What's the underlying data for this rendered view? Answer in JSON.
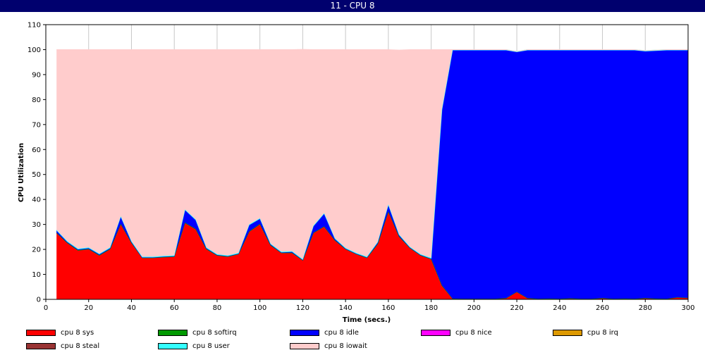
{
  "window": {
    "title": "11 - CPU 8"
  },
  "chart_data": {
    "type": "area",
    "stacked": true,
    "title": "",
    "xlabel": "Time (secs.)",
    "ylabel": "CPU Utilization",
    "xlim": [
      0,
      300
    ],
    "ylim": [
      0,
      110
    ],
    "xticks": [
      0,
      20,
      40,
      60,
      80,
      100,
      120,
      140,
      160,
      180,
      200,
      220,
      240,
      260,
      280,
      300
    ],
    "yticks": [
      0,
      10,
      20,
      30,
      40,
      50,
      60,
      70,
      80,
      90,
      100,
      110
    ],
    "grid": "vertical",
    "legend_position": "bottom",
    "x": [
      5,
      10,
      15,
      20,
      25,
      30,
      35,
      40,
      45,
      50,
      55,
      60,
      65,
      70,
      75,
      80,
      85,
      90,
      95,
      100,
      105,
      110,
      115,
      120,
      125,
      130,
      135,
      140,
      145,
      150,
      155,
      160,
      165,
      170,
      175,
      180,
      185,
      190,
      195,
      200,
      205,
      210,
      215,
      220,
      225,
      230,
      235,
      240,
      245,
      250,
      255,
      260,
      265,
      270,
      275,
      280,
      285,
      290,
      295,
      300
    ],
    "series": [
      {
        "name": "cpu 8 sys",
        "color": "#ff0000",
        "values": [
          26.5,
          22.5,
          19.5,
          20.0,
          17.5,
          20.0,
          30.0,
          22.5,
          16.5,
          16.5,
          16.8,
          17.0,
          30.5,
          28.0,
          20.0,
          17.5,
          17.0,
          18.0,
          27.0,
          30.0,
          21.5,
          18.5,
          18.5,
          15.5,
          26.5,
          29.0,
          23.5,
          20.0,
          18.0,
          16.5,
          22.0,
          35.0,
          25.0,
          20.5,
          17.5,
          16.0,
          5.5,
          0.3,
          0.2,
          0.2,
          0.2,
          0.2,
          0.5,
          3.0,
          0.5,
          0.2,
          0.3,
          0.2,
          0.4,
          0.2,
          0.2,
          0.5,
          0.2,
          0.3,
          0.2,
          0.5,
          0.3,
          0.2,
          0.8,
          0.6
        ]
      },
      {
        "name": "cpu 8 softirq",
        "color": "#009900",
        "values": [
          0.2,
          0.2,
          0.2,
          0.2,
          0.2,
          0.2,
          0.2,
          0.2,
          0.2,
          0.2,
          0.2,
          0.2,
          0.2,
          0.2,
          0.2,
          0.2,
          0.2,
          0.2,
          0.2,
          0.2,
          0.2,
          0.2,
          0.2,
          0.2,
          0.2,
          0.2,
          0.2,
          0.2,
          0.2,
          0.2,
          0.2,
          0.2,
          0.2,
          0.2,
          0.2,
          0.2,
          0.1,
          0.0,
          0.0,
          0.0,
          0.0,
          0.0,
          0.0,
          0.0,
          0.0,
          0.0,
          0.0,
          0.0,
          0.0,
          0.0,
          0.0,
          0.0,
          0.0,
          0.0,
          0.0,
          0.0,
          0.0,
          0.0,
          0.0,
          0.0
        ]
      },
      {
        "name": "cpu 8 idle",
        "color": "#0000ff",
        "values": [
          0.8,
          0.3,
          0.3,
          0.3,
          0.3,
          0.3,
          2.8,
          0.3,
          0.1,
          0.1,
          0.1,
          0.1,
          5.0,
          3.5,
          0.3,
          0.1,
          0.1,
          0.1,
          2.5,
          2.0,
          0.3,
          0.1,
          0.3,
          0.1,
          2.5,
          5.0,
          0.5,
          0.1,
          0.1,
          0.1,
          0.5,
          2.5,
          0.5,
          0.1,
          0.1,
          0.1,
          70.0,
          99.4,
          99.5,
          99.5,
          99.5,
          99.5,
          99.2,
          96.0,
          99.2,
          99.5,
          99.4,
          99.5,
          99.3,
          99.5,
          99.5,
          99.2,
          99.5,
          99.4,
          99.5,
          98.8,
          99.2,
          99.5,
          98.9,
          99.1
        ]
      },
      {
        "name": "cpu 8 nice",
        "color": "#ff00ff",
        "values": [
          0,
          0,
          0,
          0,
          0,
          0,
          0,
          0,
          0,
          0,
          0,
          0,
          0,
          0,
          0,
          0,
          0,
          0,
          0,
          0,
          0,
          0,
          0,
          0,
          0,
          0,
          0,
          0,
          0,
          0,
          0,
          0,
          0,
          0,
          0,
          0,
          0,
          0,
          0,
          0,
          0,
          0,
          0,
          0,
          0,
          0,
          0,
          0,
          0,
          0,
          0,
          0,
          0,
          0,
          0,
          0,
          0,
          0,
          0,
          0
        ]
      },
      {
        "name": "cpu 8 irq",
        "color": "#dd9900",
        "values": [
          0,
          0,
          0,
          0,
          0,
          0,
          0,
          0,
          0,
          0,
          0,
          0,
          0,
          0,
          0,
          0,
          0,
          0,
          0,
          0,
          0,
          0,
          0,
          0,
          0,
          0,
          0,
          0,
          0,
          0,
          0,
          0,
          0,
          0,
          0,
          0,
          0,
          0,
          0,
          0,
          0,
          0,
          0,
          0,
          0,
          0,
          0,
          0,
          0,
          0,
          0,
          0,
          0,
          0,
          0,
          0,
          0,
          0,
          0,
          0
        ]
      },
      {
        "name": "cpu 8 steal",
        "color": "#993333",
        "values": [
          0,
          0,
          0,
          0,
          0,
          0,
          0,
          0,
          0,
          0,
          0,
          0,
          0,
          0,
          0,
          0,
          0,
          0,
          0,
          0,
          0,
          0,
          0,
          0,
          0,
          0,
          0,
          0,
          0,
          0,
          0,
          0,
          0,
          0,
          0,
          0,
          0,
          0,
          0,
          0,
          0,
          0,
          0,
          0,
          0,
          0,
          0,
          0,
          0,
          0,
          0,
          0,
          0,
          0,
          0,
          0,
          0,
          0,
          0,
          0
        ]
      },
      {
        "name": "cpu 8 user",
        "color": "#33ffff",
        "values": [
          0.3,
          0.3,
          0.3,
          0.3,
          0.3,
          0.3,
          0.3,
          0.3,
          0.3,
          0.3,
          0.3,
          0.3,
          0.3,
          0.3,
          0.3,
          0.3,
          0.3,
          0.3,
          0.3,
          0.3,
          0.3,
          0.3,
          0.3,
          0.3,
          0.3,
          0.3,
          0.3,
          0.3,
          0.3,
          0.3,
          0.3,
          0.3,
          0.3,
          0.3,
          0.3,
          0.3,
          0.4,
          0.3,
          0.3,
          0.3,
          0.3,
          0.3,
          0.3,
          0.3,
          0.3,
          0.3,
          0.3,
          0.3,
          0.3,
          0.3,
          0.3,
          0.3,
          0.3,
          0.3,
          0.3,
          0.3,
          0.3,
          0.3,
          0.3,
          0.3
        ]
      },
      {
        "name": "cpu 8 iowait",
        "color": "#ffcccc",
        "values": [
          72.2,
          76.7,
          79.7,
          79.2,
          81.7,
          79.2,
          66.7,
          76.7,
          82.9,
          82.9,
          82.6,
          82.4,
          64.0,
          68.0,
          79.2,
          81.9,
          82.4,
          81.4,
          70.0,
          67.5,
          77.7,
          80.9,
          80.7,
          84.0,
          70.5,
          65.5,
          75.5,
          79.4,
          81.4,
          82.9,
          77.0,
          62.0,
          73.8,
          78.9,
          81.9,
          83.4,
          24.0,
          0.0,
          0.0,
          0.0,
          0.0,
          0.0,
          0.0,
          0.0,
          0.0,
          0.0,
          0.0,
          0.0,
          0.0,
          0.0,
          0.0,
          0.0,
          0.0,
          0.0,
          0.0,
          0.0,
          0.0,
          0.0,
          0.0,
          0.0
        ]
      }
    ]
  }
}
